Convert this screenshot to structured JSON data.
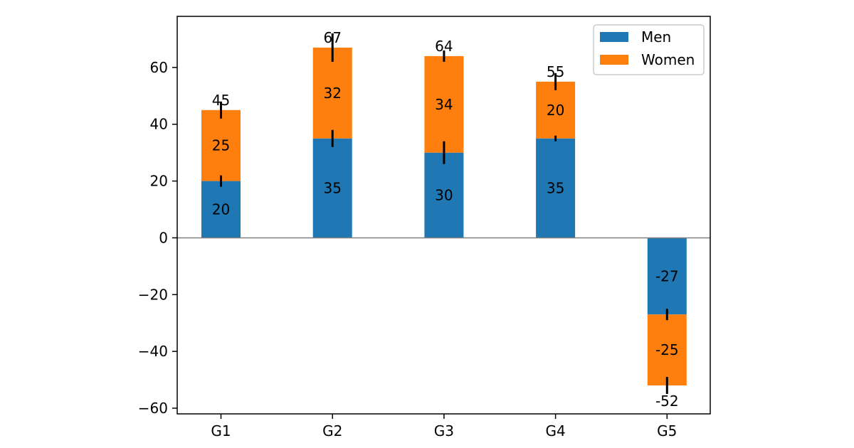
{
  "chart_data": {
    "type": "bar",
    "stacked": true,
    "categories": [
      "G1",
      "G2",
      "G3",
      "G4",
      "G5"
    ],
    "series": [
      {
        "name": "Men",
        "values": [
          20,
          35,
          30,
          35,
          -27
        ],
        "errors": [
          2,
          3,
          4,
          1,
          2
        ],
        "color": "#1f77b4"
      },
      {
        "name": "Women",
        "values": [
          25,
          32,
          34,
          20,
          -25
        ],
        "errors": [
          3,
          5,
          2,
          3,
          3
        ],
        "color": "#ff7f0e"
      }
    ],
    "totals": [
      "45",
      "67",
      "64",
      "55",
      "-52"
    ],
    "ylim": [
      -62,
      78
    ],
    "yticks": [
      -60,
      -40,
      -20,
      0,
      20,
      40,
      60
    ],
    "ytick_labels": [
      "−60",
      "−40",
      "−20",
      "0",
      "20",
      "40",
      "60"
    ],
    "xlabel": "",
    "ylabel": "",
    "title": "",
    "legend": {
      "placement": "top-right"
    },
    "grid": false,
    "zero_line": true
  }
}
